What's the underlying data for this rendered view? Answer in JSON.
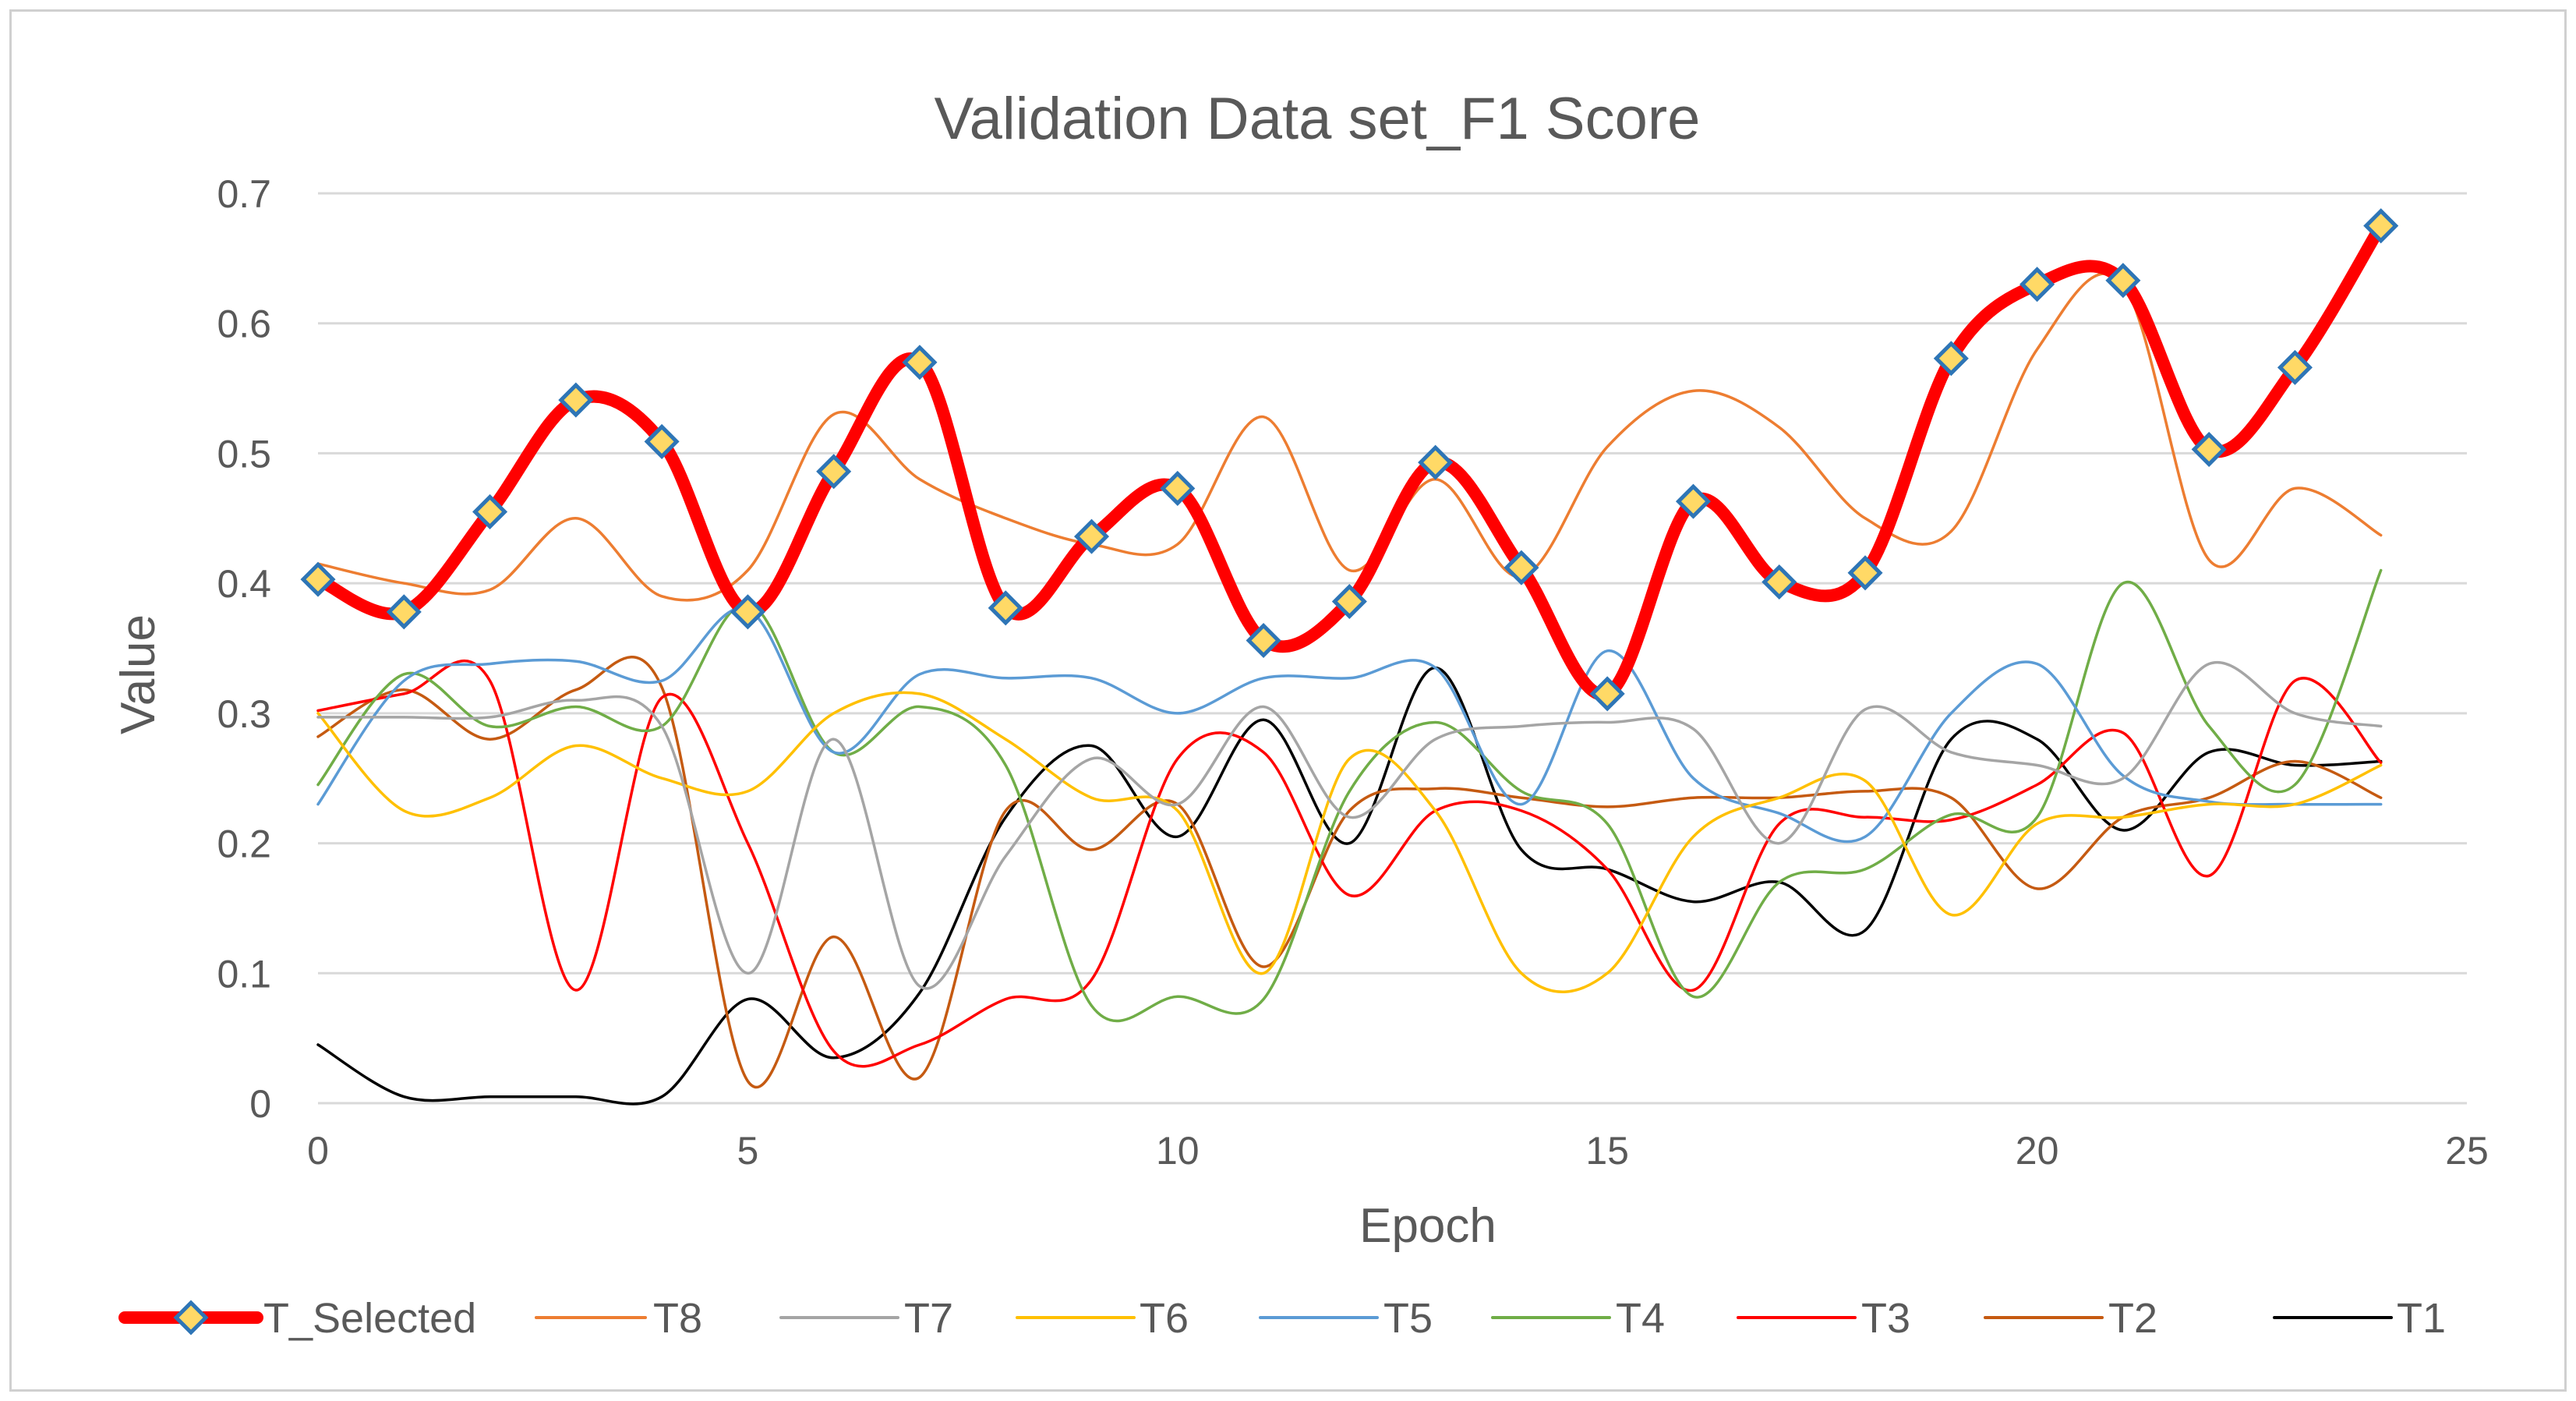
{
  "chart_data": {
    "type": "line",
    "title": "Validation Data set_F1 Score",
    "xlabel": "Epoch",
    "ylabel": "Value",
    "xlim": [
      0,
      25
    ],
    "ylim": [
      0,
      0.7
    ],
    "x_ticks": [
      "0",
      "5",
      "10",
      "15",
      "20",
      "25"
    ],
    "y_ticks": [
      "0",
      "0.1",
      "0.2",
      "0.3",
      "0.4",
      "0.5",
      "0.6",
      "0.7"
    ],
    "grid": "horizontal",
    "legend_position": "bottom",
    "x": [
      0,
      1,
      2,
      3,
      4,
      5,
      6,
      7,
      8,
      9,
      10,
      11,
      12,
      13,
      14,
      15,
      16,
      17,
      18,
      19,
      20,
      21,
      22,
      23,
      24
    ],
    "series": [
      {
        "name": "T_Selected",
        "color": "#ff0000",
        "marker": "diamond",
        "values": [
          0.403,
          0.378,
          0.455,
          0.541,
          0.509,
          0.378,
          0.486,
          0.57,
          0.381,
          0.436,
          0.473,
          0.356,
          0.386,
          0.493,
          0.412,
          0.315,
          0.463,
          0.401,
          0.408,
          0.573,
          0.63,
          0.633,
          0.503,
          0.566,
          0.675
        ]
      },
      {
        "name": "T8",
        "color": "#ed7d31",
        "values": [
          0.415,
          0.4,
          0.395,
          0.45,
          0.39,
          0.41,
          0.53,
          0.48,
          0.45,
          0.43,
          0.43,
          0.528,
          0.41,
          0.48,
          0.405,
          0.505,
          0.548,
          0.52,
          0.45,
          0.44,
          0.58,
          0.63,
          0.418,
          0.473,
          0.437
        ]
      },
      {
        "name": "T7",
        "color": "#a5a5a5",
        "values": [
          0.297,
          0.297,
          0.297,
          0.31,
          0.29,
          0.1,
          0.28,
          0.09,
          0.19,
          0.265,
          0.23,
          0.305,
          0.22,
          0.28,
          0.29,
          0.293,
          0.288,
          0.2,
          0.303,
          0.27,
          0.26,
          0.25,
          0.338,
          0.3,
          0.29
        ]
      },
      {
        "name": "T6",
        "color": "#ffc000",
        "values": [
          0.3,
          0.225,
          0.235,
          0.275,
          0.25,
          0.24,
          0.3,
          0.315,
          0.28,
          0.235,
          0.225,
          0.1,
          0.265,
          0.225,
          0.1,
          0.1,
          0.205,
          0.235,
          0.248,
          0.145,
          0.215,
          0.22,
          0.23,
          0.23,
          0.26
        ]
      },
      {
        "name": "T5",
        "color": "#5b9bd5",
        "values": [
          0.23,
          0.325,
          0.338,
          0.34,
          0.325,
          0.38,
          0.27,
          0.33,
          0.327,
          0.327,
          0.3,
          0.327,
          0.327,
          0.335,
          0.23,
          0.348,
          0.25,
          0.223,
          0.205,
          0.3,
          0.338,
          0.252,
          0.232,
          0.23,
          0.23
        ]
      },
      {
        "name": "T4",
        "color": "#70ad47",
        "values": [
          0.245,
          0.33,
          0.29,
          0.305,
          0.29,
          0.385,
          0.27,
          0.305,
          0.26,
          0.075,
          0.082,
          0.08,
          0.24,
          0.293,
          0.24,
          0.215,
          0.082,
          0.17,
          0.18,
          0.222,
          0.22,
          0.4,
          0.29,
          0.245,
          0.41
        ]
      },
      {
        "name": "T3",
        "color": "#ff0000",
        "values": [
          0.302,
          0.315,
          0.325,
          0.087,
          0.312,
          0.2,
          0.04,
          0.045,
          0.08,
          0.095,
          0.265,
          0.27,
          0.16,
          0.225,
          0.225,
          0.18,
          0.087,
          0.215,
          0.22,
          0.218,
          0.245,
          0.285,
          0.175,
          0.325,
          0.262
        ]
      },
      {
        "name": "T2",
        "color": "#c55a11",
        "values": [
          0.282,
          0.318,
          0.28,
          0.318,
          0.32,
          0.017,
          0.128,
          0.02,
          0.225,
          0.195,
          0.23,
          0.105,
          0.225,
          0.242,
          0.235,
          0.228,
          0.235,
          0.235,
          0.24,
          0.235,
          0.165,
          0.22,
          0.235,
          0.263,
          0.235
        ]
      },
      {
        "name": "T1",
        "color": "#000000",
        "values": [
          0.045,
          0.005,
          0.005,
          0.005,
          0.005,
          0.08,
          0.035,
          0.085,
          0.22,
          0.275,
          0.205,
          0.295,
          0.2,
          0.335,
          0.195,
          0.18,
          0.155,
          0.17,
          0.133,
          0.28,
          0.28,
          0.21,
          0.27,
          0.26,
          0.263
        ]
      }
    ]
  }
}
